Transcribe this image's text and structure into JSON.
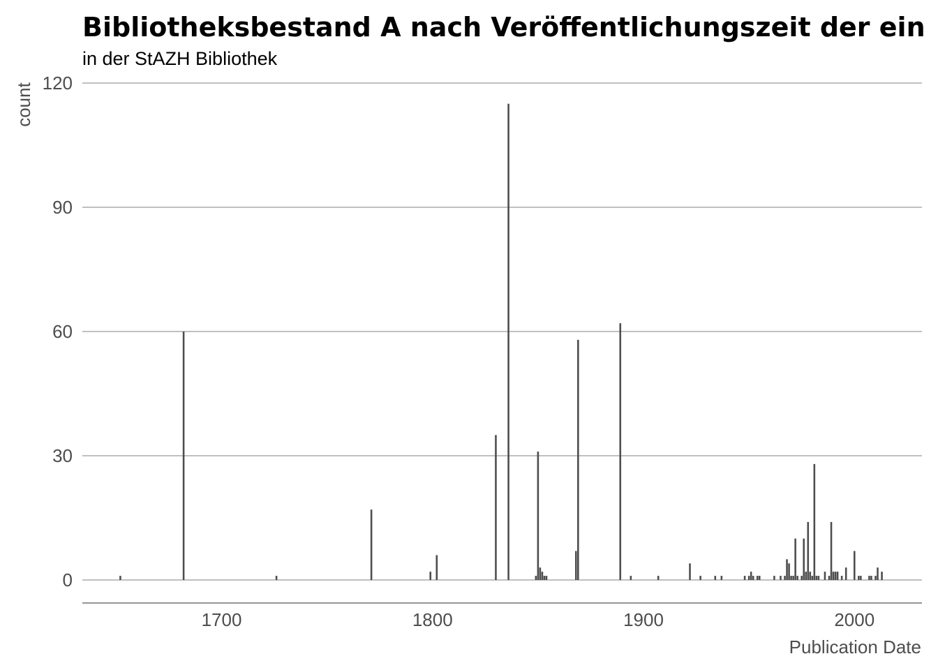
{
  "chart_data": {
    "type": "bar",
    "title": "Bibliotheksbestand A nach Veröffentlichungszeit der ein",
    "subtitle": "in der StAZH Bibliothek",
    "xlabel": "Publication Date",
    "ylabel": "count",
    "xlim": [
      1634,
      2032
    ],
    "ylim": [
      0,
      120
    ],
    "x_ticks": [
      1700,
      1800,
      1900,
      2000
    ],
    "y_ticks": [
      0,
      30,
      60,
      90,
      120
    ],
    "grid": "horizontal",
    "x": [
      1652,
      1682,
      1726,
      1771,
      1799,
      1802,
      1830,
      1836,
      1849,
      1850,
      1851,
      1852,
      1853,
      1854,
      1868,
      1869,
      1889,
      1894,
      1907,
      1922,
      1927,
      1934,
      1937,
      1948,
      1950,
      1951,
      1952,
      1954,
      1955,
      1962,
      1965,
      1967,
      1968,
      1969,
      1970,
      1971,
      1972,
      1973,
      1975,
      1976,
      1977,
      1978,
      1979,
      1980,
      1981,
      1982,
      1983,
      1986,
      1988,
      1989,
      1990,
      1991,
      1992,
      1994,
      1996,
      2000,
      2002,
      2003,
      2007,
      2008,
      2010,
      2011,
      2013
    ],
    "values": [
      1,
      60,
      1,
      17,
      2,
      6,
      35,
      115,
      1,
      31,
      3,
      2,
      1,
      1,
      7,
      58,
      62,
      1,
      1,
      4,
      1,
      1,
      1,
      1,
      1,
      2,
      1,
      1,
      1,
      1,
      1,
      1,
      5,
      4,
      1,
      1,
      10,
      1,
      1,
      10,
      2,
      14,
      2,
      1,
      28,
      1,
      1,
      2,
      1,
      14,
      2,
      2,
      2,
      1,
      3,
      7,
      1,
      1,
      1,
      1,
      1,
      3,
      2
    ]
  }
}
